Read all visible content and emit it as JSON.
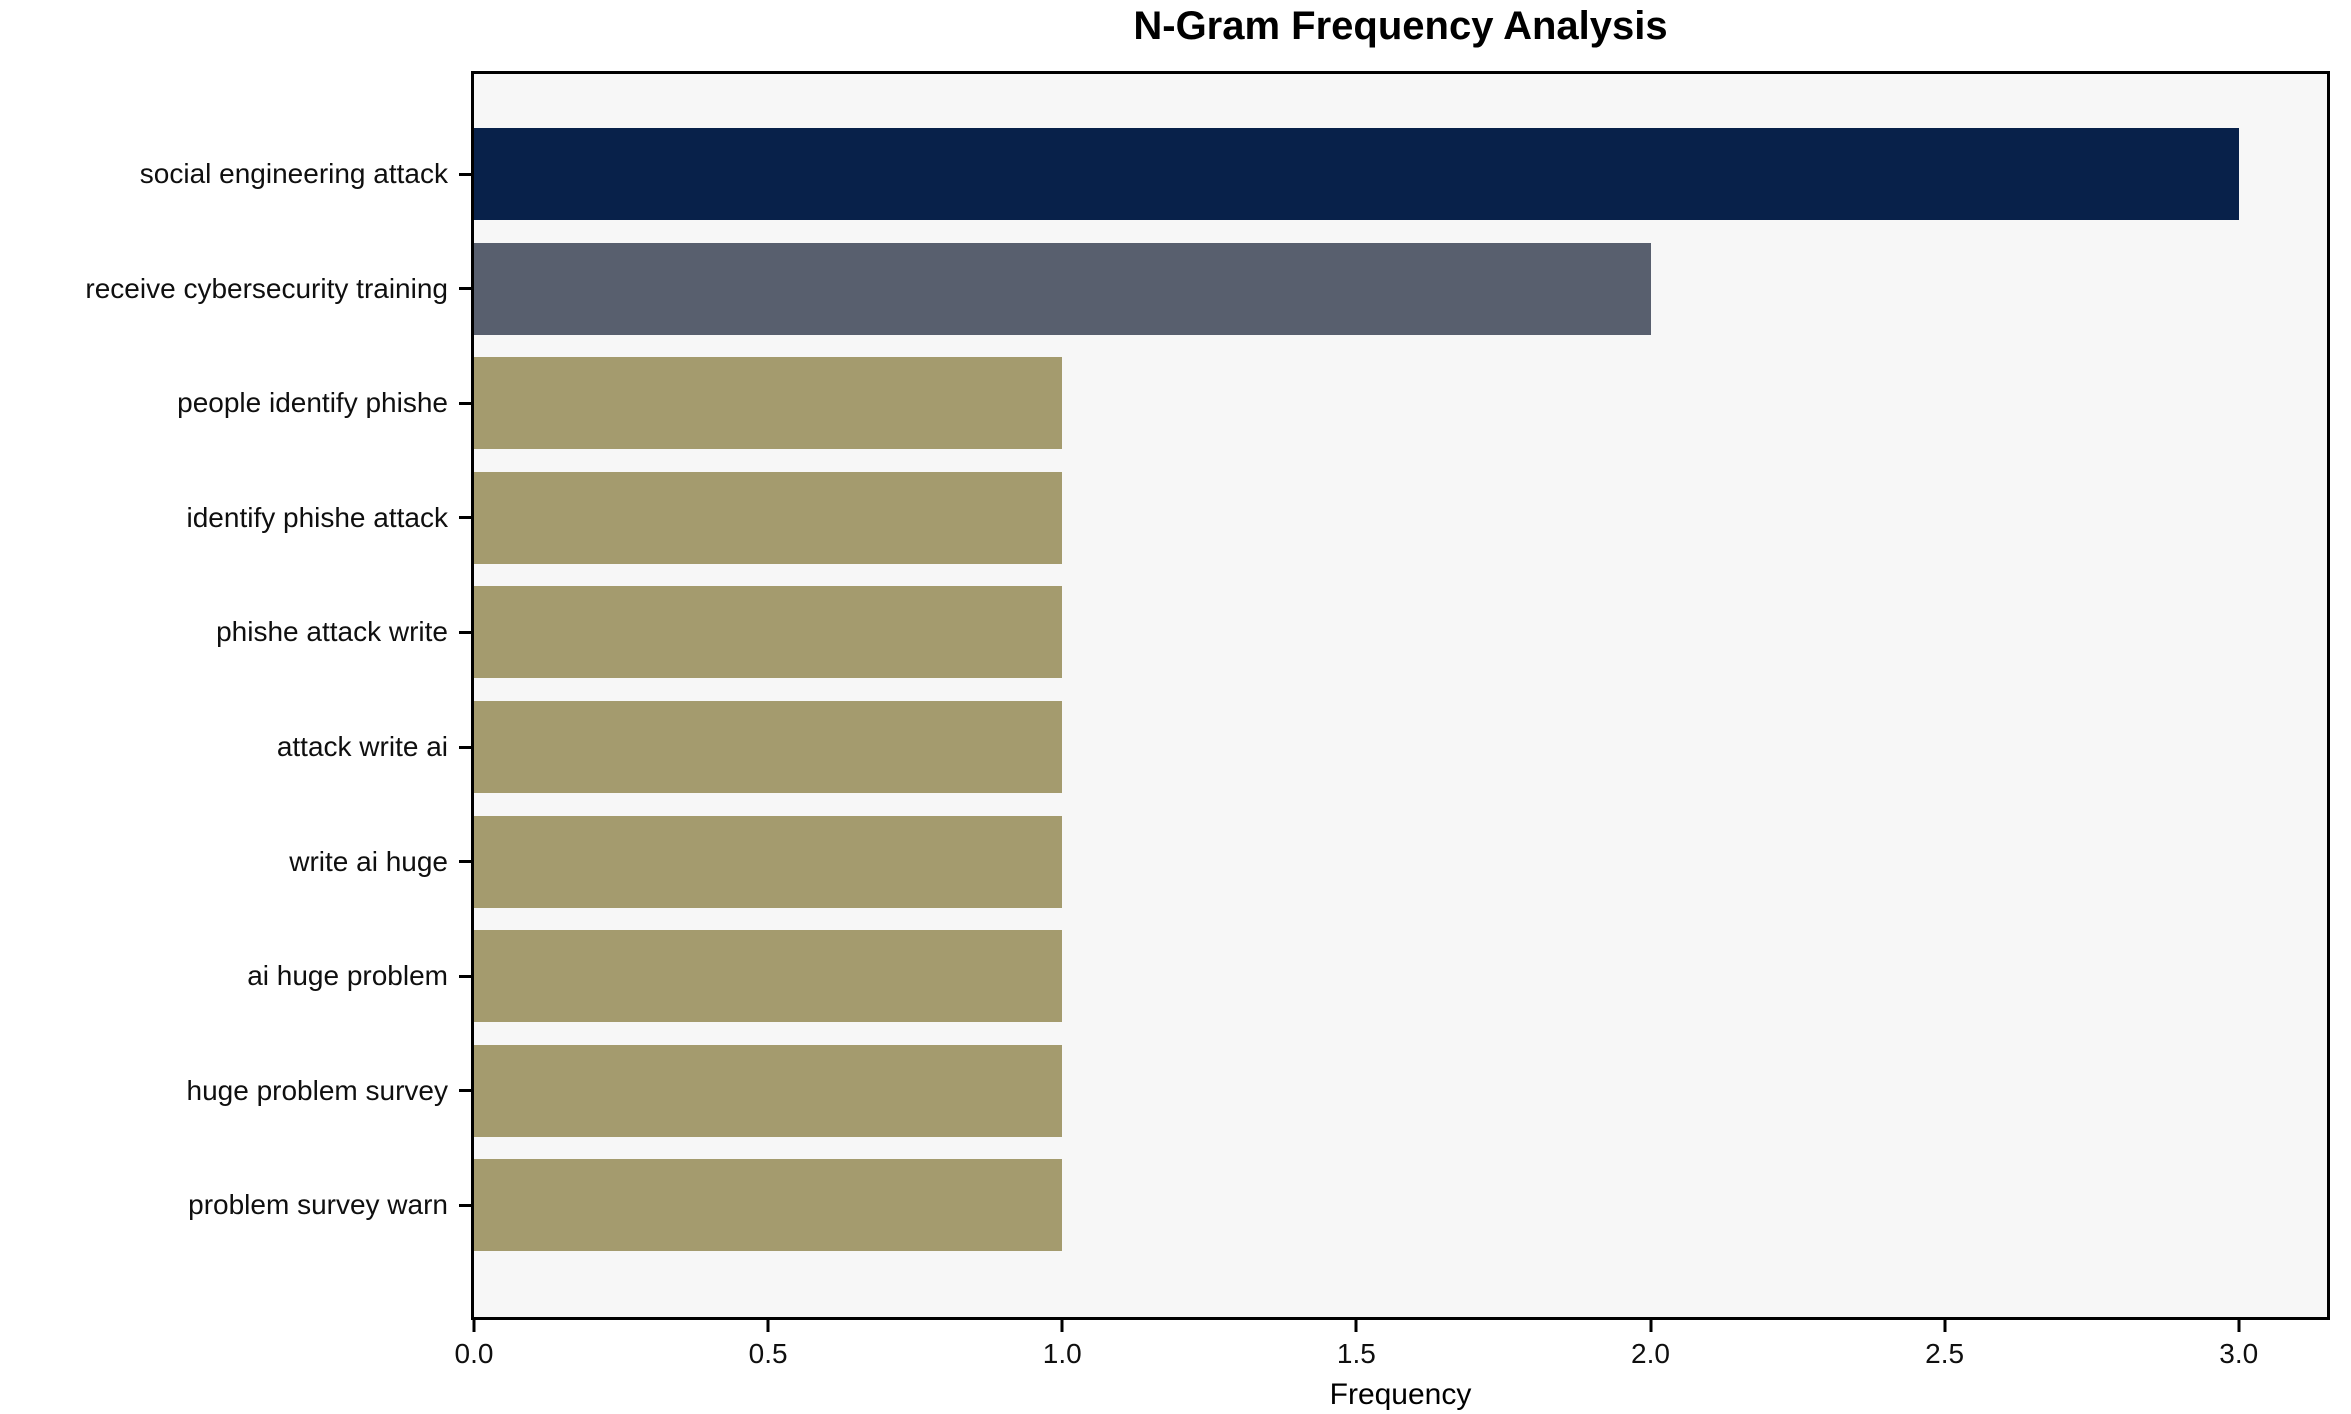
{
  "chart_data": {
    "type": "bar",
    "orientation": "horizontal",
    "title": "N-Gram Frequency Analysis",
    "categories": [
      "social engineering attack",
      "receive cybersecurity training",
      "people identify phishe",
      "identify phishe attack",
      "phishe attack write",
      "attack write ai",
      "write ai huge",
      "ai huge problem",
      "huge problem survey",
      "problem survey warn"
    ],
    "values": [
      3,
      2,
      1,
      1,
      1,
      1,
      1,
      1,
      1,
      1
    ],
    "bar_colors": [
      "#08214a",
      "#585f6e",
      "#a49b6e",
      "#a49b6e",
      "#a49b6e",
      "#a49b6e",
      "#a49b6e",
      "#a49b6e",
      "#a49b6e",
      "#a49b6e"
    ],
    "xlabel": "Frequency",
    "ylabel": "",
    "xticks": [
      0.0,
      0.5,
      1.0,
      1.5,
      2.0,
      2.5,
      3.0
    ],
    "xtick_labels": [
      "0.0",
      "0.5",
      "1.0",
      "1.5",
      "2.0",
      "2.5",
      "3.0"
    ],
    "xlim": [
      0,
      3.15
    ],
    "grid": false,
    "legend_position": "none",
    "plot_background": "#f7f7f7",
    "figure_background": "#ffffff",
    "spine_color": "#000000"
  }
}
